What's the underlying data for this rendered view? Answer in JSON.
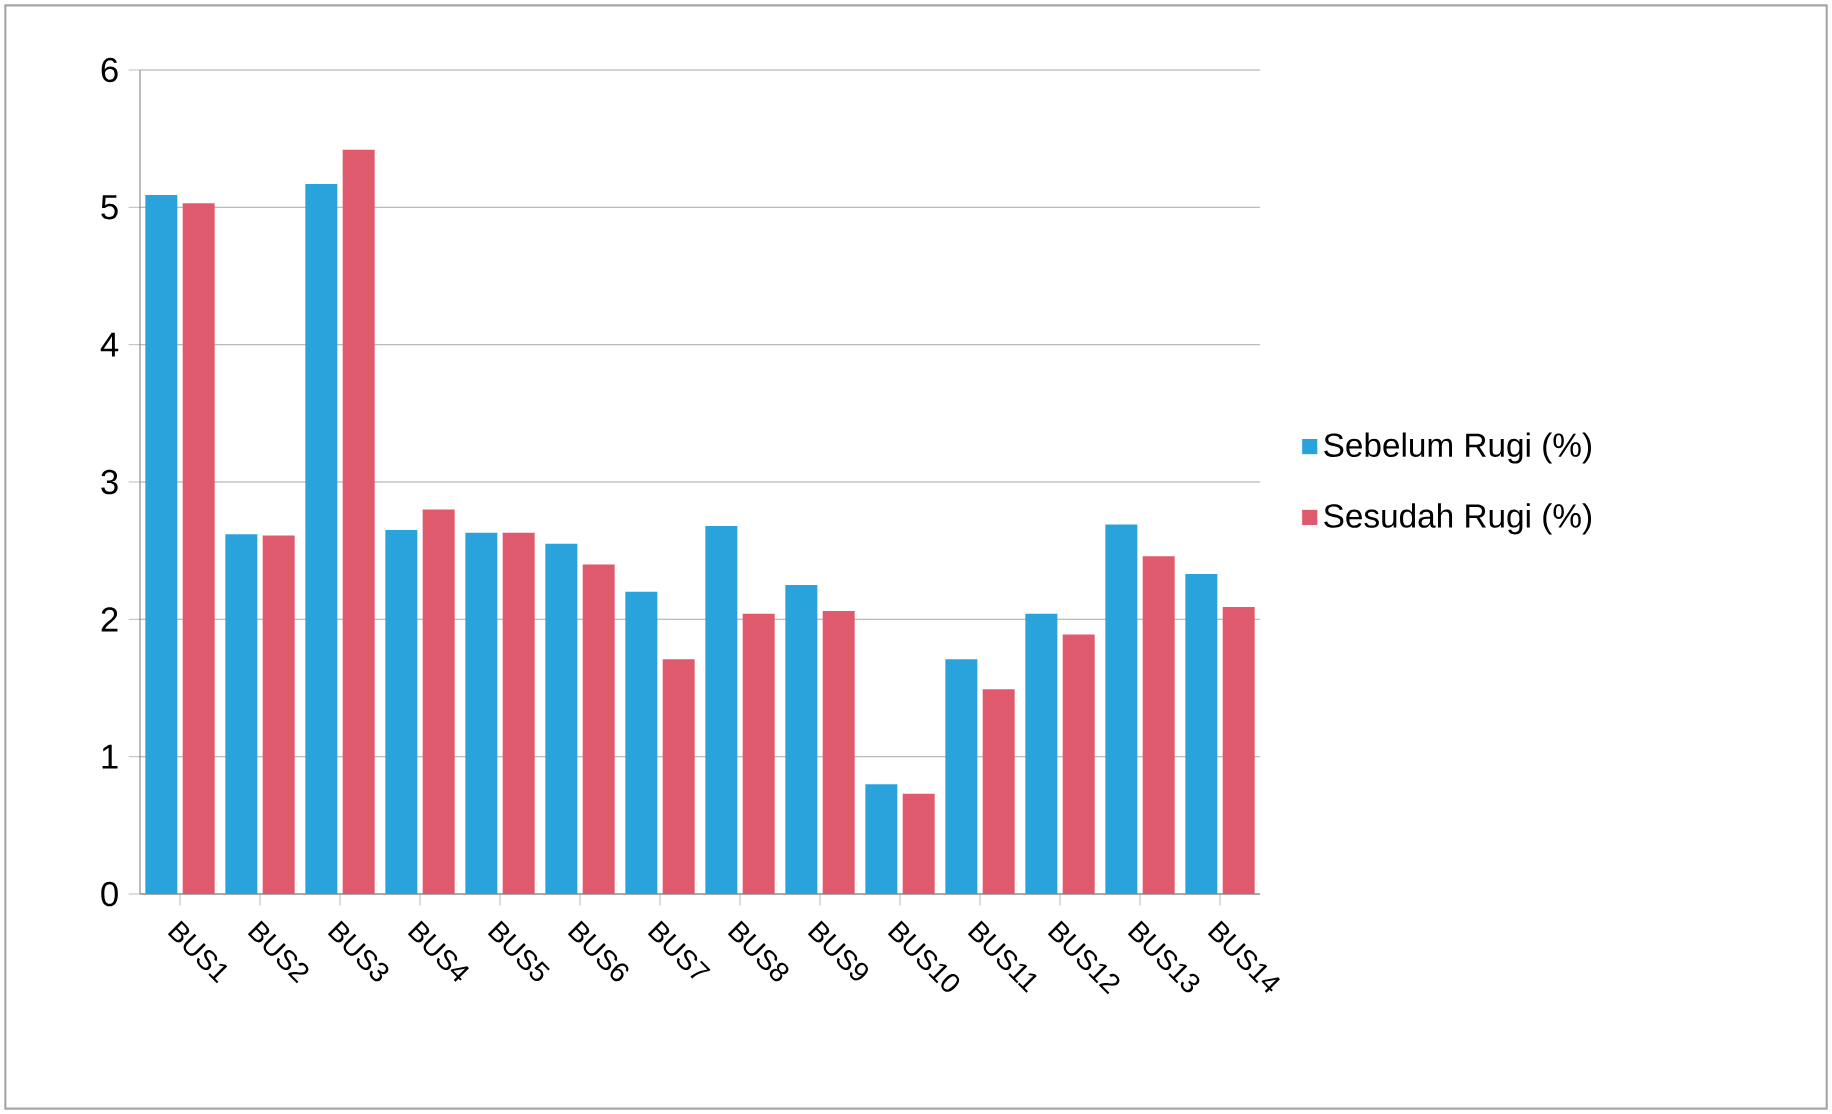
{
  "chart_data": {
    "type": "bar",
    "categories": [
      "BUS1",
      "BUS2",
      "BUS3",
      "BUS4",
      "BUS5",
      "BUS6",
      "BUS7",
      "BUS8",
      "BUS9",
      "BUS10",
      "BUS11",
      "BUS12",
      "BUS13",
      "BUS14"
    ],
    "series": [
      {
        "name": "Sebelum Rugi (%)",
        "color": "#2aa3dc",
        "values": [
          5.09,
          2.62,
          5.17,
          2.65,
          2.63,
          2.55,
          2.2,
          2.68,
          2.25,
          0.8,
          1.71,
          2.04,
          2.69,
          2.33
        ]
      },
      {
        "name": "Sesudah Rugi (%)",
        "color": "#e05a6e",
        "values": [
          5.03,
          2.61,
          5.42,
          2.8,
          2.63,
          2.4,
          1.71,
          2.04,
          2.06,
          0.73,
          1.49,
          1.89,
          2.46,
          2.09
        ]
      }
    ],
    "ylim": [
      0,
      6
    ],
    "yticks": [
      0,
      1,
      2,
      3,
      4,
      5,
      6
    ],
    "grid": "y",
    "legend": "right"
  }
}
